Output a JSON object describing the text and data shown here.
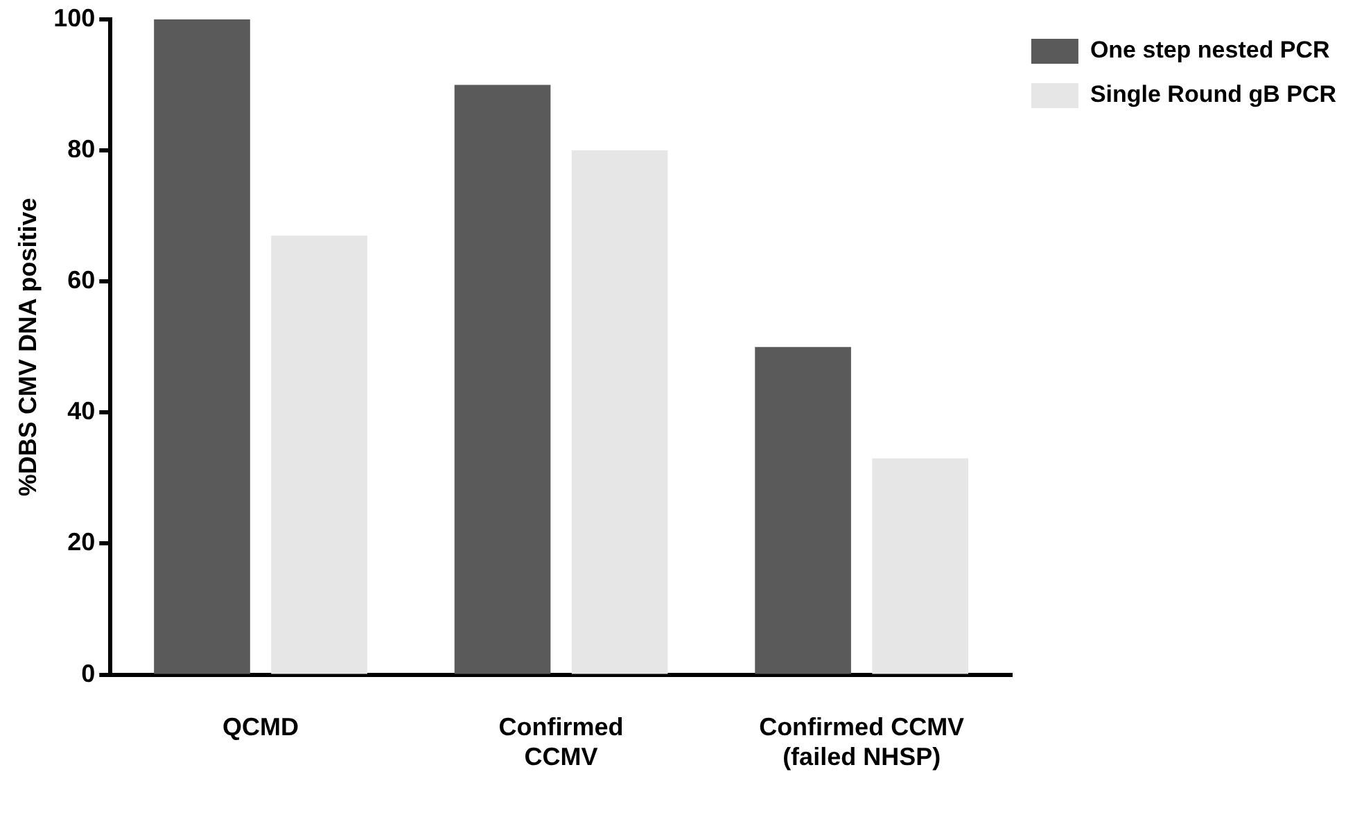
{
  "chart_data": {
    "type": "bar",
    "ylabel": "%DBS CMV DNA positive",
    "categories": [
      "QCMD",
      "Confirmed CCMV",
      "Confirmed CCMV (failed NHSP)"
    ],
    "series": [
      {
        "name": "One step nested PCR",
        "color": "#5a5a5a",
        "values": [
          100,
          90,
          50
        ]
      },
      {
        "name": "Single Round gB PCR",
        "color": "#e6e6e6",
        "values": [
          67,
          80,
          33
        ]
      }
    ],
    "ylim": [
      0,
      100
    ],
    "yticks": [
      0,
      20,
      40,
      60,
      80,
      100
    ],
    "grid": false,
    "legend": "top right"
  }
}
